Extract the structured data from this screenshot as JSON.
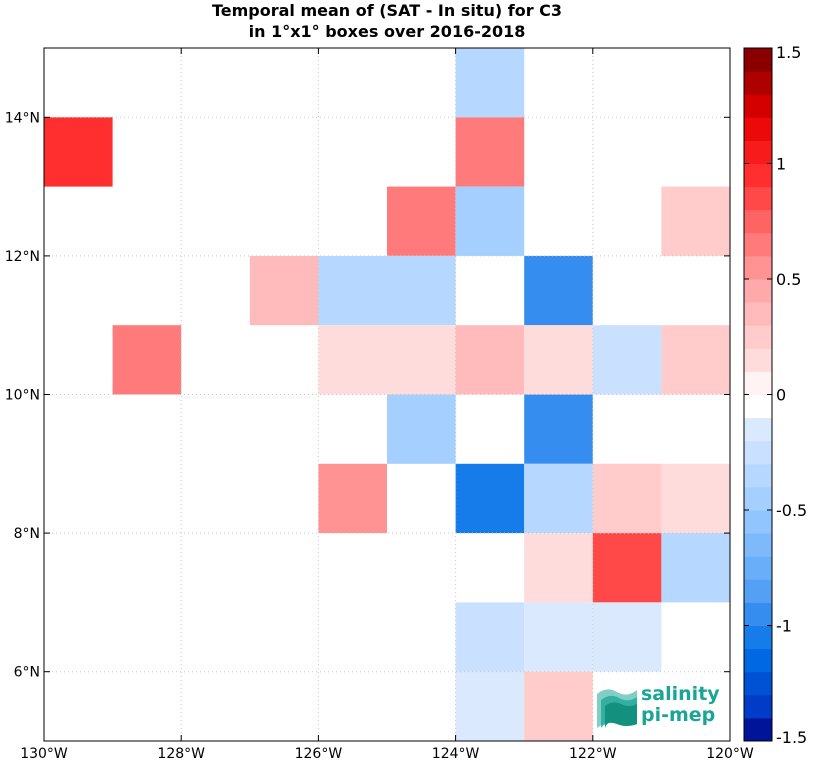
{
  "title": {
    "line1": "Temporal mean of (SAT - In situ) for C3",
    "line2": "in 1°x1° boxes over 2016-2018"
  },
  "map": {
    "lon_range": [
      -130,
      -120
    ],
    "lat_range": [
      5,
      15
    ],
    "x_ticks": [
      {
        "value": -130,
        "label": "130°W"
      },
      {
        "value": -128,
        "label": "128°W"
      },
      {
        "value": -126,
        "label": "126°W"
      },
      {
        "value": -124,
        "label": "124°W"
      },
      {
        "value": -122,
        "label": "122°W"
      },
      {
        "value": -120,
        "label": "120°W"
      }
    ],
    "y_ticks": [
      {
        "value": 6,
        "label": "6°N"
      },
      {
        "value": 8,
        "label": "8°N"
      },
      {
        "value": 10,
        "label": "10°N"
      },
      {
        "value": 12,
        "label": "12°N"
      },
      {
        "value": 14,
        "label": "14°N"
      }
    ],
    "grid": true,
    "cell_size_deg": 1
  },
  "chart_data": {
    "type": "heatmap",
    "cells": [
      {
        "lon": -123.5,
        "lat": 14.5,
        "value": -0.35
      },
      {
        "lon": -129.5,
        "lat": 13.5,
        "value": 0.95
      },
      {
        "lon": -123.5,
        "lat": 13.5,
        "value": 0.65
      },
      {
        "lon": -124.5,
        "lat": 12.5,
        "value": 0.65
      },
      {
        "lon": -123.5,
        "lat": 12.5,
        "value": -0.45
      },
      {
        "lon": -120.5,
        "lat": 12.5,
        "value": 0.25
      },
      {
        "lon": -126.5,
        "lat": 11.5,
        "value": 0.35
      },
      {
        "lon": -125.5,
        "lat": 11.5,
        "value": -0.35
      },
      {
        "lon": -124.5,
        "lat": 11.5,
        "value": -0.35
      },
      {
        "lon": -122.5,
        "lat": 11.5,
        "value": -0.95
      },
      {
        "lon": -128.5,
        "lat": 10.5,
        "value": 0.65
      },
      {
        "lon": -125.5,
        "lat": 10.5,
        "value": 0.15
      },
      {
        "lon": -124.5,
        "lat": 10.5,
        "value": 0.15
      },
      {
        "lon": -123.5,
        "lat": 10.5,
        "value": 0.35
      },
      {
        "lon": -122.5,
        "lat": 10.5,
        "value": 0.15
      },
      {
        "lon": -121.5,
        "lat": 10.5,
        "value": -0.25
      },
      {
        "lon": -120.5,
        "lat": 10.5,
        "value": 0.25
      },
      {
        "lon": -124.5,
        "lat": 9.5,
        "value": -0.45
      },
      {
        "lon": -122.5,
        "lat": 9.5,
        "value": -0.95
      },
      {
        "lon": -125.5,
        "lat": 8.5,
        "value": 0.55
      },
      {
        "lon": -123.5,
        "lat": 8.5,
        "value": -1.05
      },
      {
        "lon": -122.5,
        "lat": 8.5,
        "value": -0.35
      },
      {
        "lon": -121.5,
        "lat": 8.5,
        "value": 0.25
      },
      {
        "lon": -120.5,
        "lat": 8.5,
        "value": 0.15
      },
      {
        "lon": -122.5,
        "lat": 7.5,
        "value": 0.15
      },
      {
        "lon": -121.5,
        "lat": 7.5,
        "value": 0.85
      },
      {
        "lon": -120.5,
        "lat": 7.5,
        "value": -0.35
      },
      {
        "lon": -123.5,
        "lat": 6.5,
        "value": -0.25
      },
      {
        "lon": -122.5,
        "lat": 6.5,
        "value": -0.15
      },
      {
        "lon": -121.5,
        "lat": 6.5,
        "value": -0.15
      },
      {
        "lon": -123.5,
        "lat": 5.5,
        "value": -0.15
      },
      {
        "lon": -122.5,
        "lat": 5.5,
        "value": 0.25
      }
    ]
  },
  "colorbar": {
    "range": [
      -1.5,
      1.5
    ],
    "levels": 30,
    "white_range": [
      -0.05,
      0.05
    ],
    "ticks": [
      {
        "value": 1.5,
        "label": "1.5"
      },
      {
        "value": 1,
        "label": "1"
      },
      {
        "value": 0.5,
        "label": "0.5"
      },
      {
        "value": 0,
        "label": "0"
      },
      {
        "value": -0.5,
        "label": "-0.5"
      },
      {
        "value": -1,
        "label": "-1"
      },
      {
        "value": -1.5,
        "label": "-1.5"
      }
    ]
  },
  "logo": {
    "line1": "salinity",
    "line2": "pi-mep",
    "color": "#1aa596"
  }
}
